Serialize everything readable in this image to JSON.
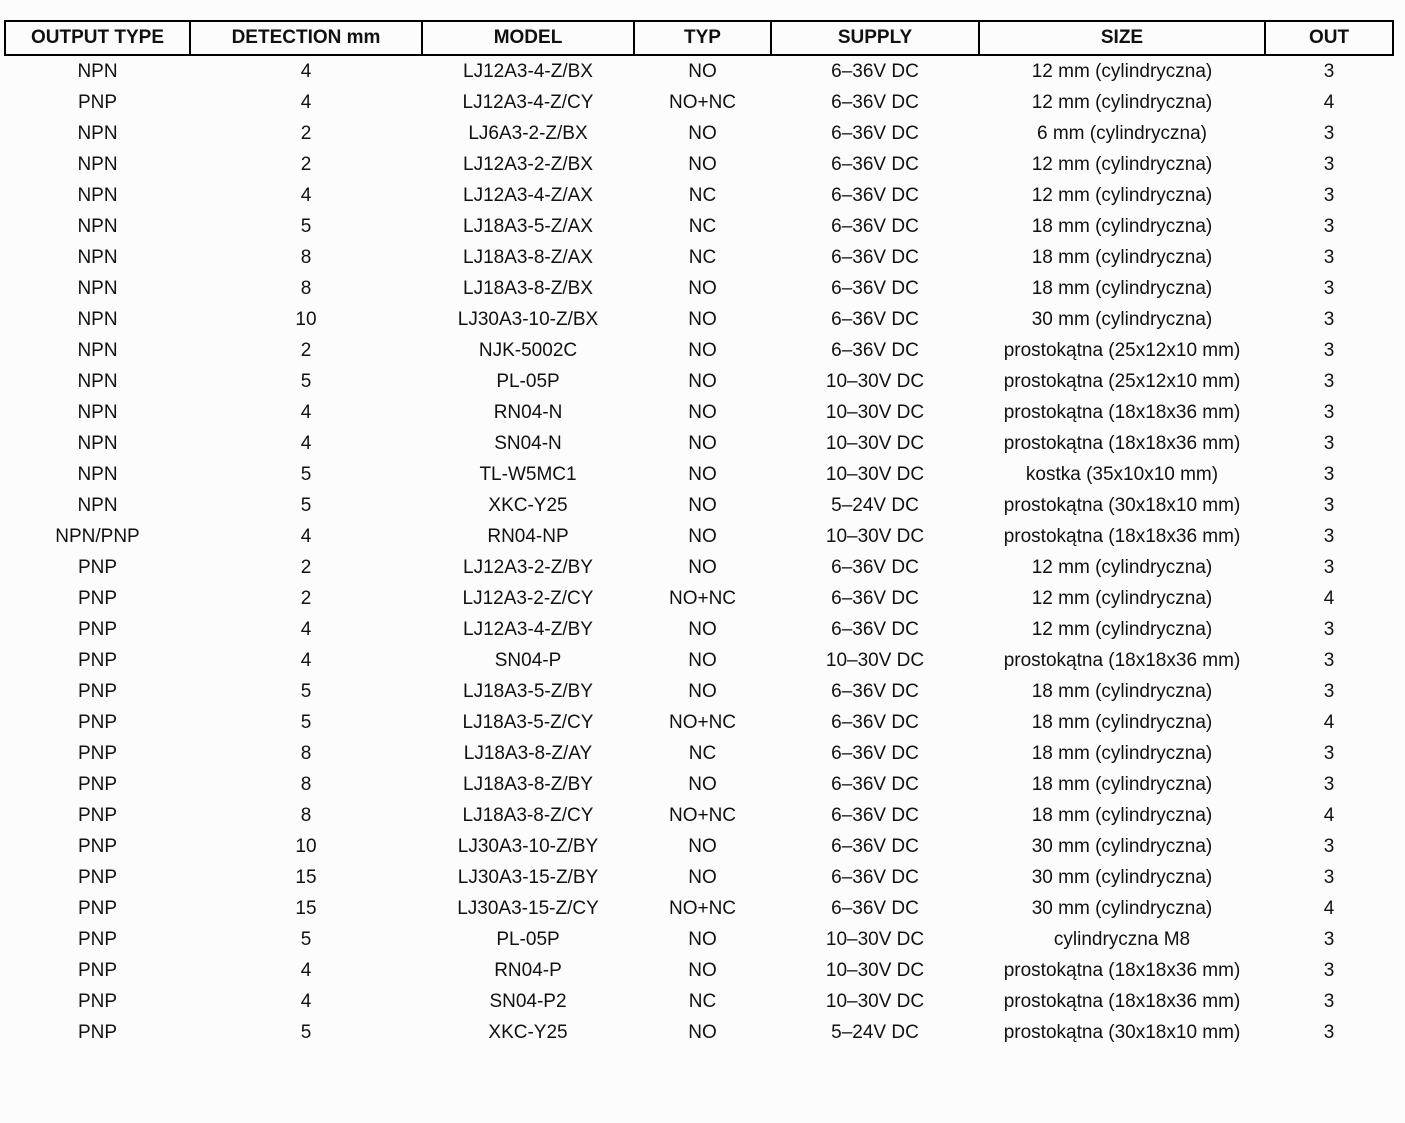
{
  "table": {
    "column_keys": [
      "output_type",
      "detection_mm",
      "model",
      "typ",
      "supply",
      "size",
      "out"
    ],
    "columns": [
      {
        "label": "OUTPUT TYPE"
      },
      {
        "label": "DETECTION mm"
      },
      {
        "label": "MODEL"
      },
      {
        "label": "TYP"
      },
      {
        "label": "SUPPLY"
      },
      {
        "label": "SIZE"
      },
      {
        "label": "OUT"
      }
    ],
    "rows": [
      [
        "NPN",
        "4",
        "LJ12A3-4-Z/BX",
        "NO",
        "6–36V DC",
        "12 mm (cylindryczna)",
        "3"
      ],
      [
        "PNP",
        "4",
        "LJ12A3-4-Z/CY",
        "NO+NC",
        "6–36V DC",
        "12 mm (cylindryczna)",
        "4"
      ],
      [
        "NPN",
        "2",
        "LJ6A3-2-Z/BX",
        "NO",
        "6–36V DC",
        "6 mm (cylindryczna)",
        "3"
      ],
      [
        "NPN",
        "2",
        "LJ12A3-2-Z/BX",
        "NO",
        "6–36V DC",
        "12 mm (cylindryczna)",
        "3"
      ],
      [
        "NPN",
        "4",
        "LJ12A3-4-Z/AX",
        "NC",
        "6–36V DC",
        "12 mm (cylindryczna)",
        "3"
      ],
      [
        "NPN",
        "5",
        "LJ18A3-5-Z/AX",
        "NC",
        "6–36V DC",
        "18 mm (cylindryczna)",
        "3"
      ],
      [
        "NPN",
        "8",
        "LJ18A3-8-Z/AX",
        "NC",
        "6–36V DC",
        "18 mm (cylindryczna)",
        "3"
      ],
      [
        "NPN",
        "8",
        "LJ18A3-8-Z/BX",
        "NO",
        "6–36V DC",
        "18 mm (cylindryczna)",
        "3"
      ],
      [
        "NPN",
        "10",
        "LJ30A3-10-Z/BX",
        "NO",
        "6–36V DC",
        "30 mm (cylindryczna)",
        "3"
      ],
      [
        "NPN",
        "2",
        "NJK-5002C",
        "NO",
        "6–36V DC",
        "prostokątna (25x12x10 mm)",
        "3"
      ],
      [
        "NPN",
        "5",
        "PL-05P",
        "NO",
        "10–30V DC",
        "prostokątna (25x12x10 mm)",
        "3"
      ],
      [
        "NPN",
        "4",
        "RN04-N",
        "NO",
        "10–30V DC",
        "prostokątna (18x18x36 mm)",
        "3"
      ],
      [
        "NPN",
        "4",
        "SN04-N",
        "NO",
        "10–30V DC",
        "prostokątna (18x18x36 mm)",
        "3"
      ],
      [
        "NPN",
        "5",
        "TL-W5MC1",
        "NO",
        "10–30V DC",
        "kostka (35x10x10 mm)",
        "3"
      ],
      [
        "NPN",
        "5",
        "XKC-Y25",
        "NO",
        "5–24V DC",
        "prostokątna (30x18x10 mm)",
        "3"
      ],
      [
        "NPN/PNP",
        "4",
        "RN04-NP",
        "NO",
        "10–30V DC",
        "prostokątna (18x18x36 mm)",
        "3"
      ],
      [
        "PNP",
        "2",
        "LJ12A3-2-Z/BY",
        "NO",
        "6–36V DC",
        "12 mm (cylindryczna)",
        "3"
      ],
      [
        "PNP",
        "2",
        "LJ12A3-2-Z/CY",
        "NO+NC",
        "6–36V DC",
        "12 mm (cylindryczna)",
        "4"
      ],
      [
        "PNP",
        "4",
        "LJ12A3-4-Z/BY",
        "NO",
        "6–36V DC",
        "12 mm (cylindryczna)",
        "3"
      ],
      [
        "PNP",
        "4",
        "SN04-P",
        "NO",
        "10–30V DC",
        "prostokątna (18x18x36 mm)",
        "3"
      ],
      [
        "PNP",
        "5",
        "LJ18A3-5-Z/BY",
        "NO",
        "6–36V DC",
        "18 mm (cylindryczna)",
        "3"
      ],
      [
        "PNP",
        "5",
        "LJ18A3-5-Z/CY",
        "NO+NC",
        "6–36V DC",
        "18 mm (cylindryczna)",
        "4"
      ],
      [
        "PNP",
        "8",
        "LJ18A3-8-Z/AY",
        "NC",
        "6–36V DC",
        "18 mm (cylindryczna)",
        "3"
      ],
      [
        "PNP",
        "8",
        "LJ18A3-8-Z/BY",
        "NO",
        "6–36V DC",
        "18 mm (cylindryczna)",
        "3"
      ],
      [
        "PNP",
        "8",
        "LJ18A3-8-Z/CY",
        "NO+NC",
        "6–36V DC",
        "18 mm (cylindryczna)",
        "4"
      ],
      [
        "PNP",
        "10",
        "LJ30A3-10-Z/BY",
        "NO",
        "6–36V DC",
        "30 mm (cylindryczna)",
        "3"
      ],
      [
        "PNP",
        "15",
        "LJ30A3-15-Z/BY",
        "NO",
        "6–36V DC",
        "30 mm (cylindryczna)",
        "3"
      ],
      [
        "PNP",
        "15",
        "LJ30A3-15-Z/CY",
        "NO+NC",
        "6–36V DC",
        "30 mm (cylindryczna)",
        "4"
      ],
      [
        "PNP",
        "5",
        "PL-05P",
        "NO",
        "10–30V DC",
        "cylindryczna M8",
        "3"
      ],
      [
        "PNP",
        "4",
        "RN04-P",
        "NO",
        "10–30V DC",
        "prostokątna (18x18x36 mm)",
        "3"
      ],
      [
        "PNP",
        "4",
        "SN04-P2",
        "NC",
        "10–30V DC",
        "prostokątna (18x18x36 mm)",
        "3"
      ],
      [
        "PNP",
        "5",
        "XKC-Y25",
        "NO",
        "5–24V DC",
        "prostokątna (30x18x10 mm)",
        "3"
      ]
    ],
    "colors": {
      "text": "#111111",
      "header_border": "#000000",
      "background": "#fcfcfc"
    }
  }
}
